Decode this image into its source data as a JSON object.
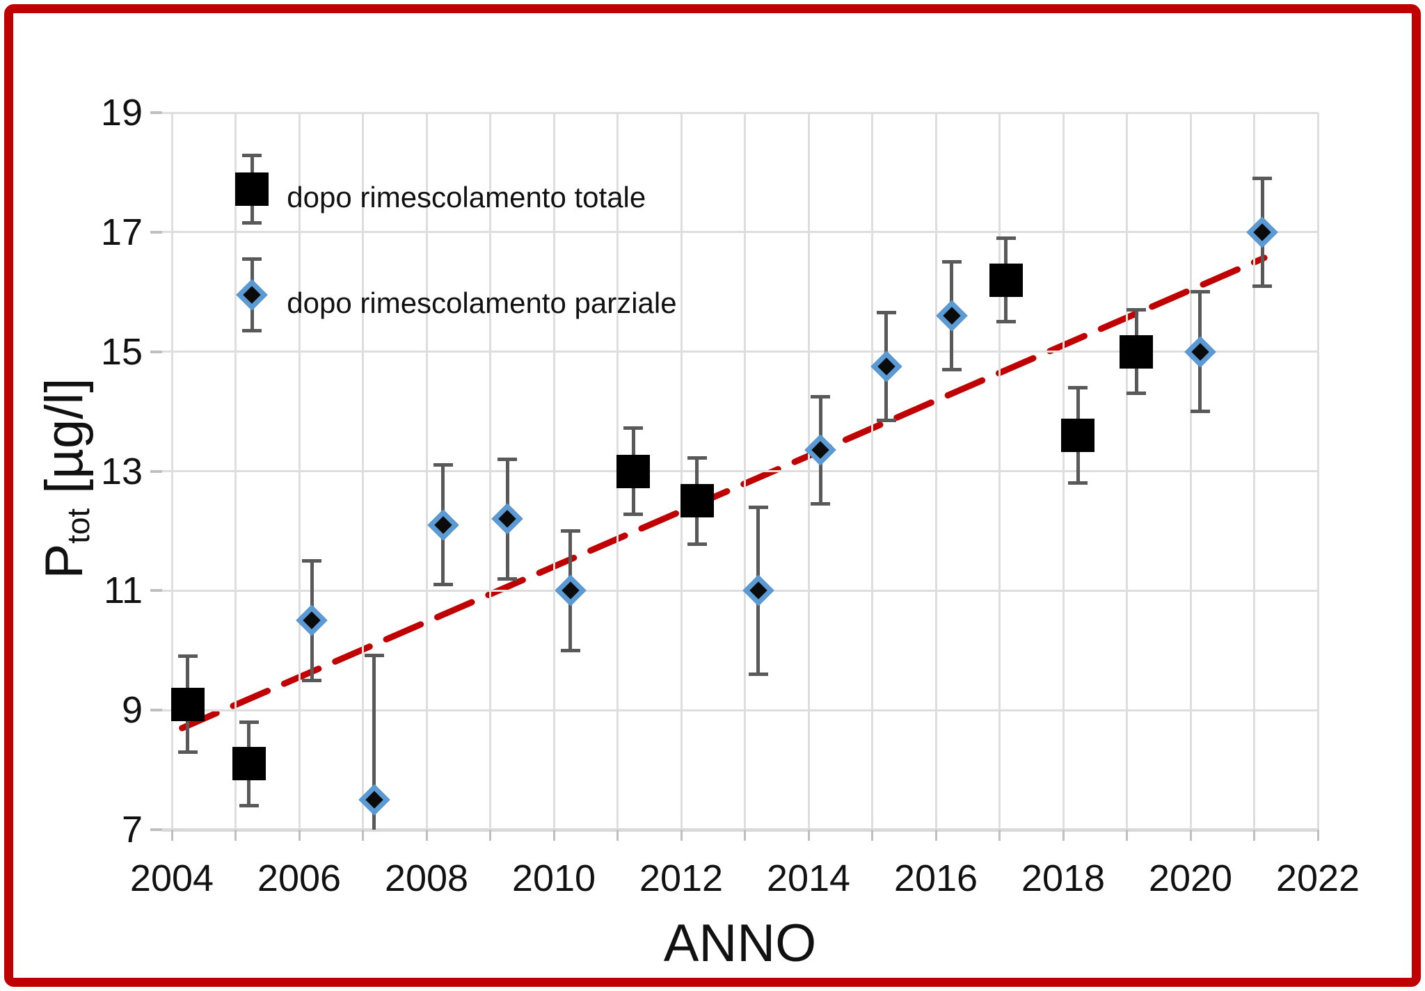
{
  "frame": {
    "border_color": "#C00000",
    "background": "#FFFFFF"
  },
  "chart_data": {
    "type": "scatter",
    "title": "",
    "xlabel": "ANNO",
    "ylabel": "Ptot [µg/l]",
    "ylabel_parts": {
      "main": "P",
      "sub": "tot",
      "unit": " [µg/l]"
    },
    "x_range": [
      2003.85,
      2022.05
    ],
    "ylim": [
      7,
      19
    ],
    "x_ticks": [
      2004,
      2006,
      2008,
      2010,
      2012,
      2014,
      2016,
      2018,
      2020,
      2022
    ],
    "y_ticks": [
      19,
      17,
      15,
      13,
      11,
      9,
      7
    ],
    "x_grid_step": 1,
    "y_grid_step": 2,
    "grid": true,
    "legend_position": "top-left",
    "error_bar_color": "#595959",
    "gridline_color": "#DEDEDE",
    "series": [
      {
        "name": "dopo rimescolamento totale",
        "marker": "square",
        "color": "#000000",
        "points": [
          {
            "x": 2004.25,
            "y": 9.1,
            "err": 0.8
          },
          {
            "x": 2005.21,
            "y": 8.1,
            "err": 0.7
          },
          {
            "x": 2011.25,
            "y": 13.0,
            "err": 0.72
          },
          {
            "x": 2012.25,
            "y": 12.5,
            "err": 0.72
          },
          {
            "x": 2017.1,
            "y": 16.2,
            "err": 0.7
          },
          {
            "x": 2018.23,
            "y": 13.6,
            "err": 0.8
          },
          {
            "x": 2019.15,
            "y": 15.0,
            "err": 0.7
          }
        ]
      },
      {
        "name": "dopo rimescolamento parziale",
        "marker": "diamond",
        "color": "#0B0B0B",
        "edge_color": "#5B9BD5",
        "points": [
          {
            "x": 2006.2,
            "y": 10.5,
            "err": 1.0
          },
          {
            "x": 2007.18,
            "y": 7.5,
            "err": 2.42
          },
          {
            "x": 2008.26,
            "y": 12.1,
            "err": 1.0
          },
          {
            "x": 2009.27,
            "y": 12.2,
            "err": 1.0
          },
          {
            "x": 2010.26,
            "y": 11.0,
            "err": 1.0
          },
          {
            "x": 2013.21,
            "y": 11.0,
            "err": 1.4
          },
          {
            "x": 2014.19,
            "y": 13.35,
            "err": 0.9
          },
          {
            "x": 2015.22,
            "y": 14.75,
            "err": 0.9
          },
          {
            "x": 2016.25,
            "y": 15.6,
            "err": 0.9
          },
          {
            "x": 2020.15,
            "y": 15.0,
            "err": 1.0
          },
          {
            "x": 2021.13,
            "y": 17.0,
            "err": 0.9
          }
        ]
      }
    ],
    "trendline": {
      "style": "dashed",
      "color": "#C00000",
      "x1": 2004.16,
      "y1": 8.7,
      "x2": 2021.16,
      "y2": 16.57
    }
  },
  "legend": {
    "entries": [
      {
        "label": "dopo rimescolamento totale",
        "marker": "square",
        "marker_x": 2005.26,
        "marker_y": 17.72,
        "err": 0.57
      },
      {
        "label": "dopo rimescolamento parziale",
        "marker": "diamond",
        "marker_x": 2005.26,
        "marker_y": 15.95,
        "err": 0.6
      }
    ]
  }
}
